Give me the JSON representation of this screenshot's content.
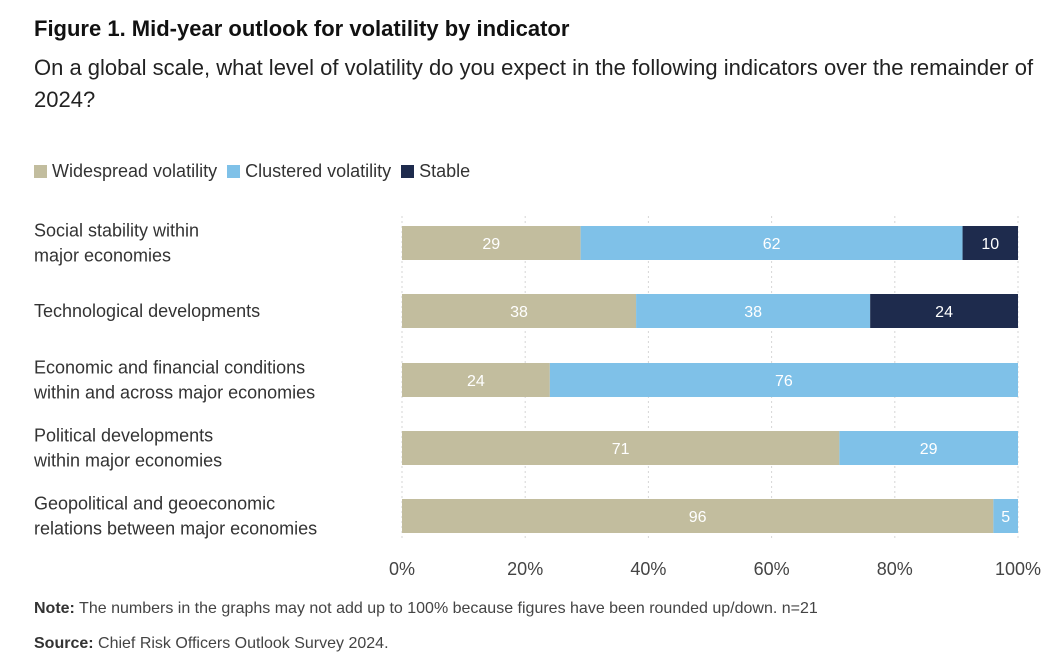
{
  "header": {
    "title": "Figure 1. Mid-year outlook for volatility by indicator",
    "subtitle": "On a global scale, what level of volatility do you expect in the following indicators over the remainder of 2024?"
  },
  "legend": [
    {
      "label": "Widespread volatility",
      "color": "#c2bd9e"
    },
    {
      "label": "Clustered volatility",
      "color": "#7fc1e8"
    },
    {
      "label": "Stable",
      "color": "#1e2b4d"
    }
  ],
  "chart_data": {
    "type": "bar",
    "orientation": "horizontal",
    "stacked": true,
    "categories": [
      [
        "Social stability within",
        "major economies"
      ],
      [
        "Technological developments"
      ],
      [
        "Economic and financial conditions",
        "within and across major economies"
      ],
      [
        "Political developments",
        "within major economies"
      ],
      [
        "Geopolitical and geoeconomic",
        "relations between major economies"
      ]
    ],
    "series": [
      {
        "name": "Widespread volatility",
        "color": "#c2bd9e",
        "values": [
          29,
          38,
          24,
          71,
          96
        ]
      },
      {
        "name": "Clustered volatility",
        "color": "#7fc1e8",
        "values": [
          62,
          38,
          76,
          29,
          5
        ]
      },
      {
        "name": "Stable",
        "color": "#1e2b4d",
        "values": [
          10,
          24,
          0,
          0,
          0
        ]
      }
    ],
    "xlim": [
      0,
      100
    ],
    "xticks": [
      "0%",
      "20%",
      "40%",
      "60%",
      "80%",
      "100%"
    ],
    "grid": true,
    "legend_position": "top-left"
  },
  "footer": {
    "note_label": "Note:",
    "note_text": " The numbers in the graphs may not add up to 100% because figures have been rounded up/down. n=21",
    "source_label": "Source:",
    "source_text": " Chief Risk Officers Outlook Survey 2024."
  }
}
